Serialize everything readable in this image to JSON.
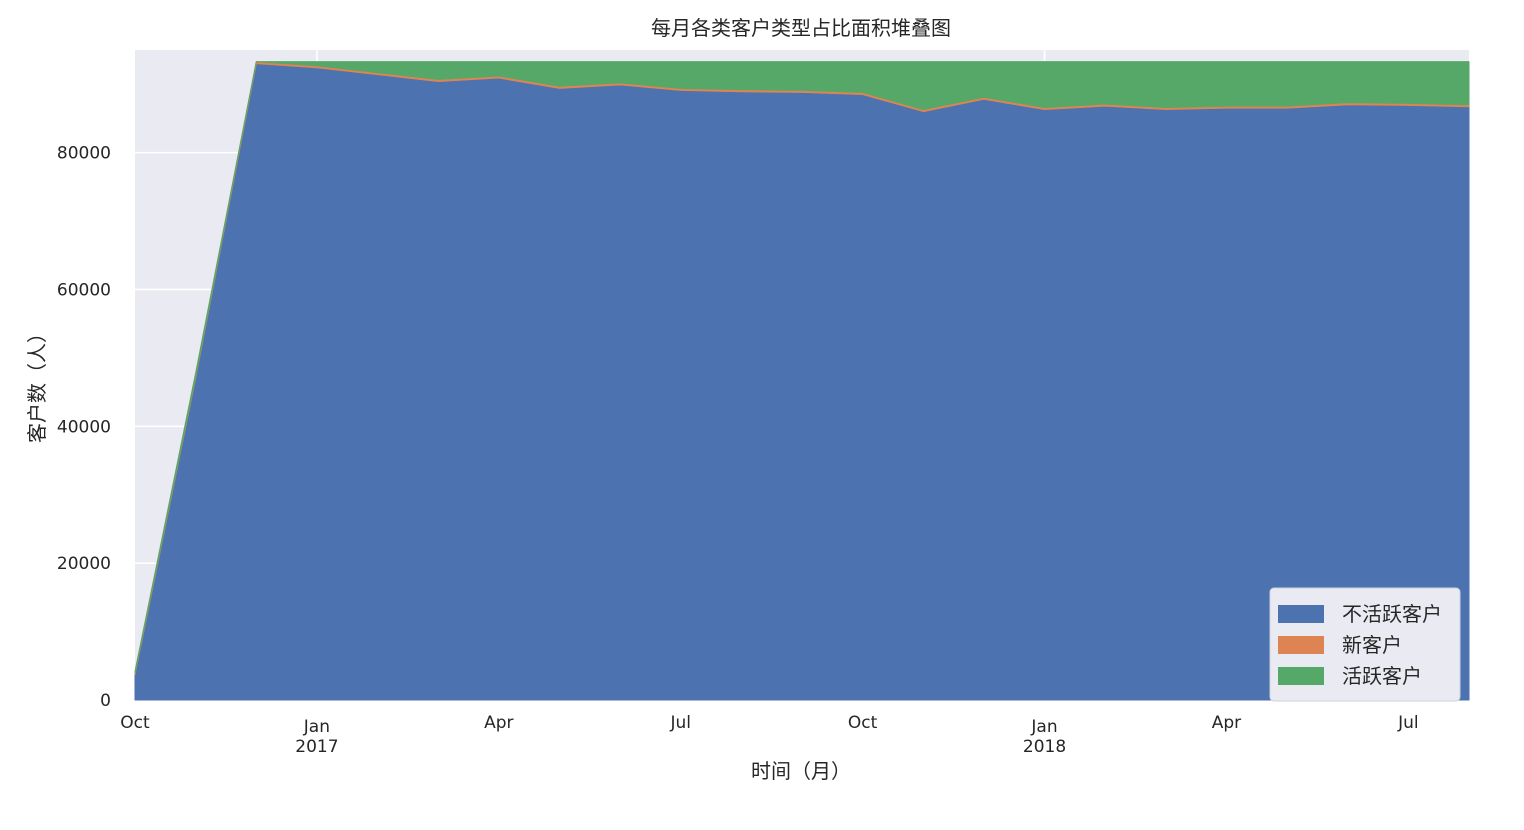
{
  "chart_data": {
    "type": "area",
    "stacked": true,
    "title": "每月各类客户类型占比面积堆叠图",
    "xlabel": "时间（月）",
    "ylabel": "客户数（人）",
    "x": [
      "2016-10",
      "2016-11",
      "2016-12",
      "2017-01",
      "2017-02",
      "2017-03",
      "2017-04",
      "2017-05",
      "2017-06",
      "2017-07",
      "2017-08",
      "2017-09",
      "2017-10",
      "2017-11",
      "2017-12",
      "2018-01",
      "2018-02",
      "2018-03",
      "2018-04",
      "2018-05",
      "2018-06",
      "2018-07",
      "2018-08"
    ],
    "series": [
      {
        "name": "不活跃客户",
        "color": "#4c72b0",
        "values": [
          3700,
          47000,
          93000,
          92400,
          91400,
          90400,
          90900,
          89400,
          89900,
          89100,
          88900,
          88800,
          88500,
          86000,
          87800,
          86300,
          86800,
          86300,
          86500,
          86500,
          87000,
          86900,
          86700
        ]
      },
      {
        "name": "新客户",
        "color": "#dd8452",
        "values": [
          300,
          300,
          300,
          300,
          300,
          300,
          300,
          300,
          300,
          300,
          300,
          300,
          300,
          300,
          300,
          300,
          300,
          300,
          300,
          300,
          300,
          300,
          300
        ]
      },
      {
        "name": "活跃客户",
        "color": "#55a868",
        "values": [
          200,
          500,
          0,
          600,
          1600,
          2600,
          2100,
          3600,
          3100,
          3900,
          4100,
          4200,
          4500,
          7000,
          5200,
          6700,
          6200,
          6700,
          6500,
          6500,
          6000,
          6100,
          6300
        ]
      }
    ],
    "xlim": [
      "2016-10",
      "2018-08"
    ],
    "ylim": [
      0,
      95000
    ],
    "yticks": [
      0,
      20000,
      40000,
      60000,
      80000
    ],
    "ytick_labels": [
      "0",
      "20000",
      "40000",
      "60000",
      "80000"
    ],
    "xticks": [
      {
        "x": "2016-10",
        "label": "Oct",
        "year": ""
      },
      {
        "x": "2017-01",
        "label": "Jan",
        "year": "2017"
      },
      {
        "x": "2017-04",
        "label": "Apr",
        "year": ""
      },
      {
        "x": "2017-07",
        "label": "Jul",
        "year": ""
      },
      {
        "x": "2017-10",
        "label": "Oct",
        "year": ""
      },
      {
        "x": "2018-01",
        "label": "Jan",
        "year": "2018"
      },
      {
        "x": "2018-04",
        "label": "Apr",
        "year": ""
      },
      {
        "x": "2018-07",
        "label": "Jul",
        "year": ""
      }
    ],
    "grid": true,
    "legend_position": "bottom-right",
    "style": {
      "plot_background": "#eaeaf2",
      "grid_color": "#ffffff",
      "legend_background": "#eaeaf2"
    }
  }
}
